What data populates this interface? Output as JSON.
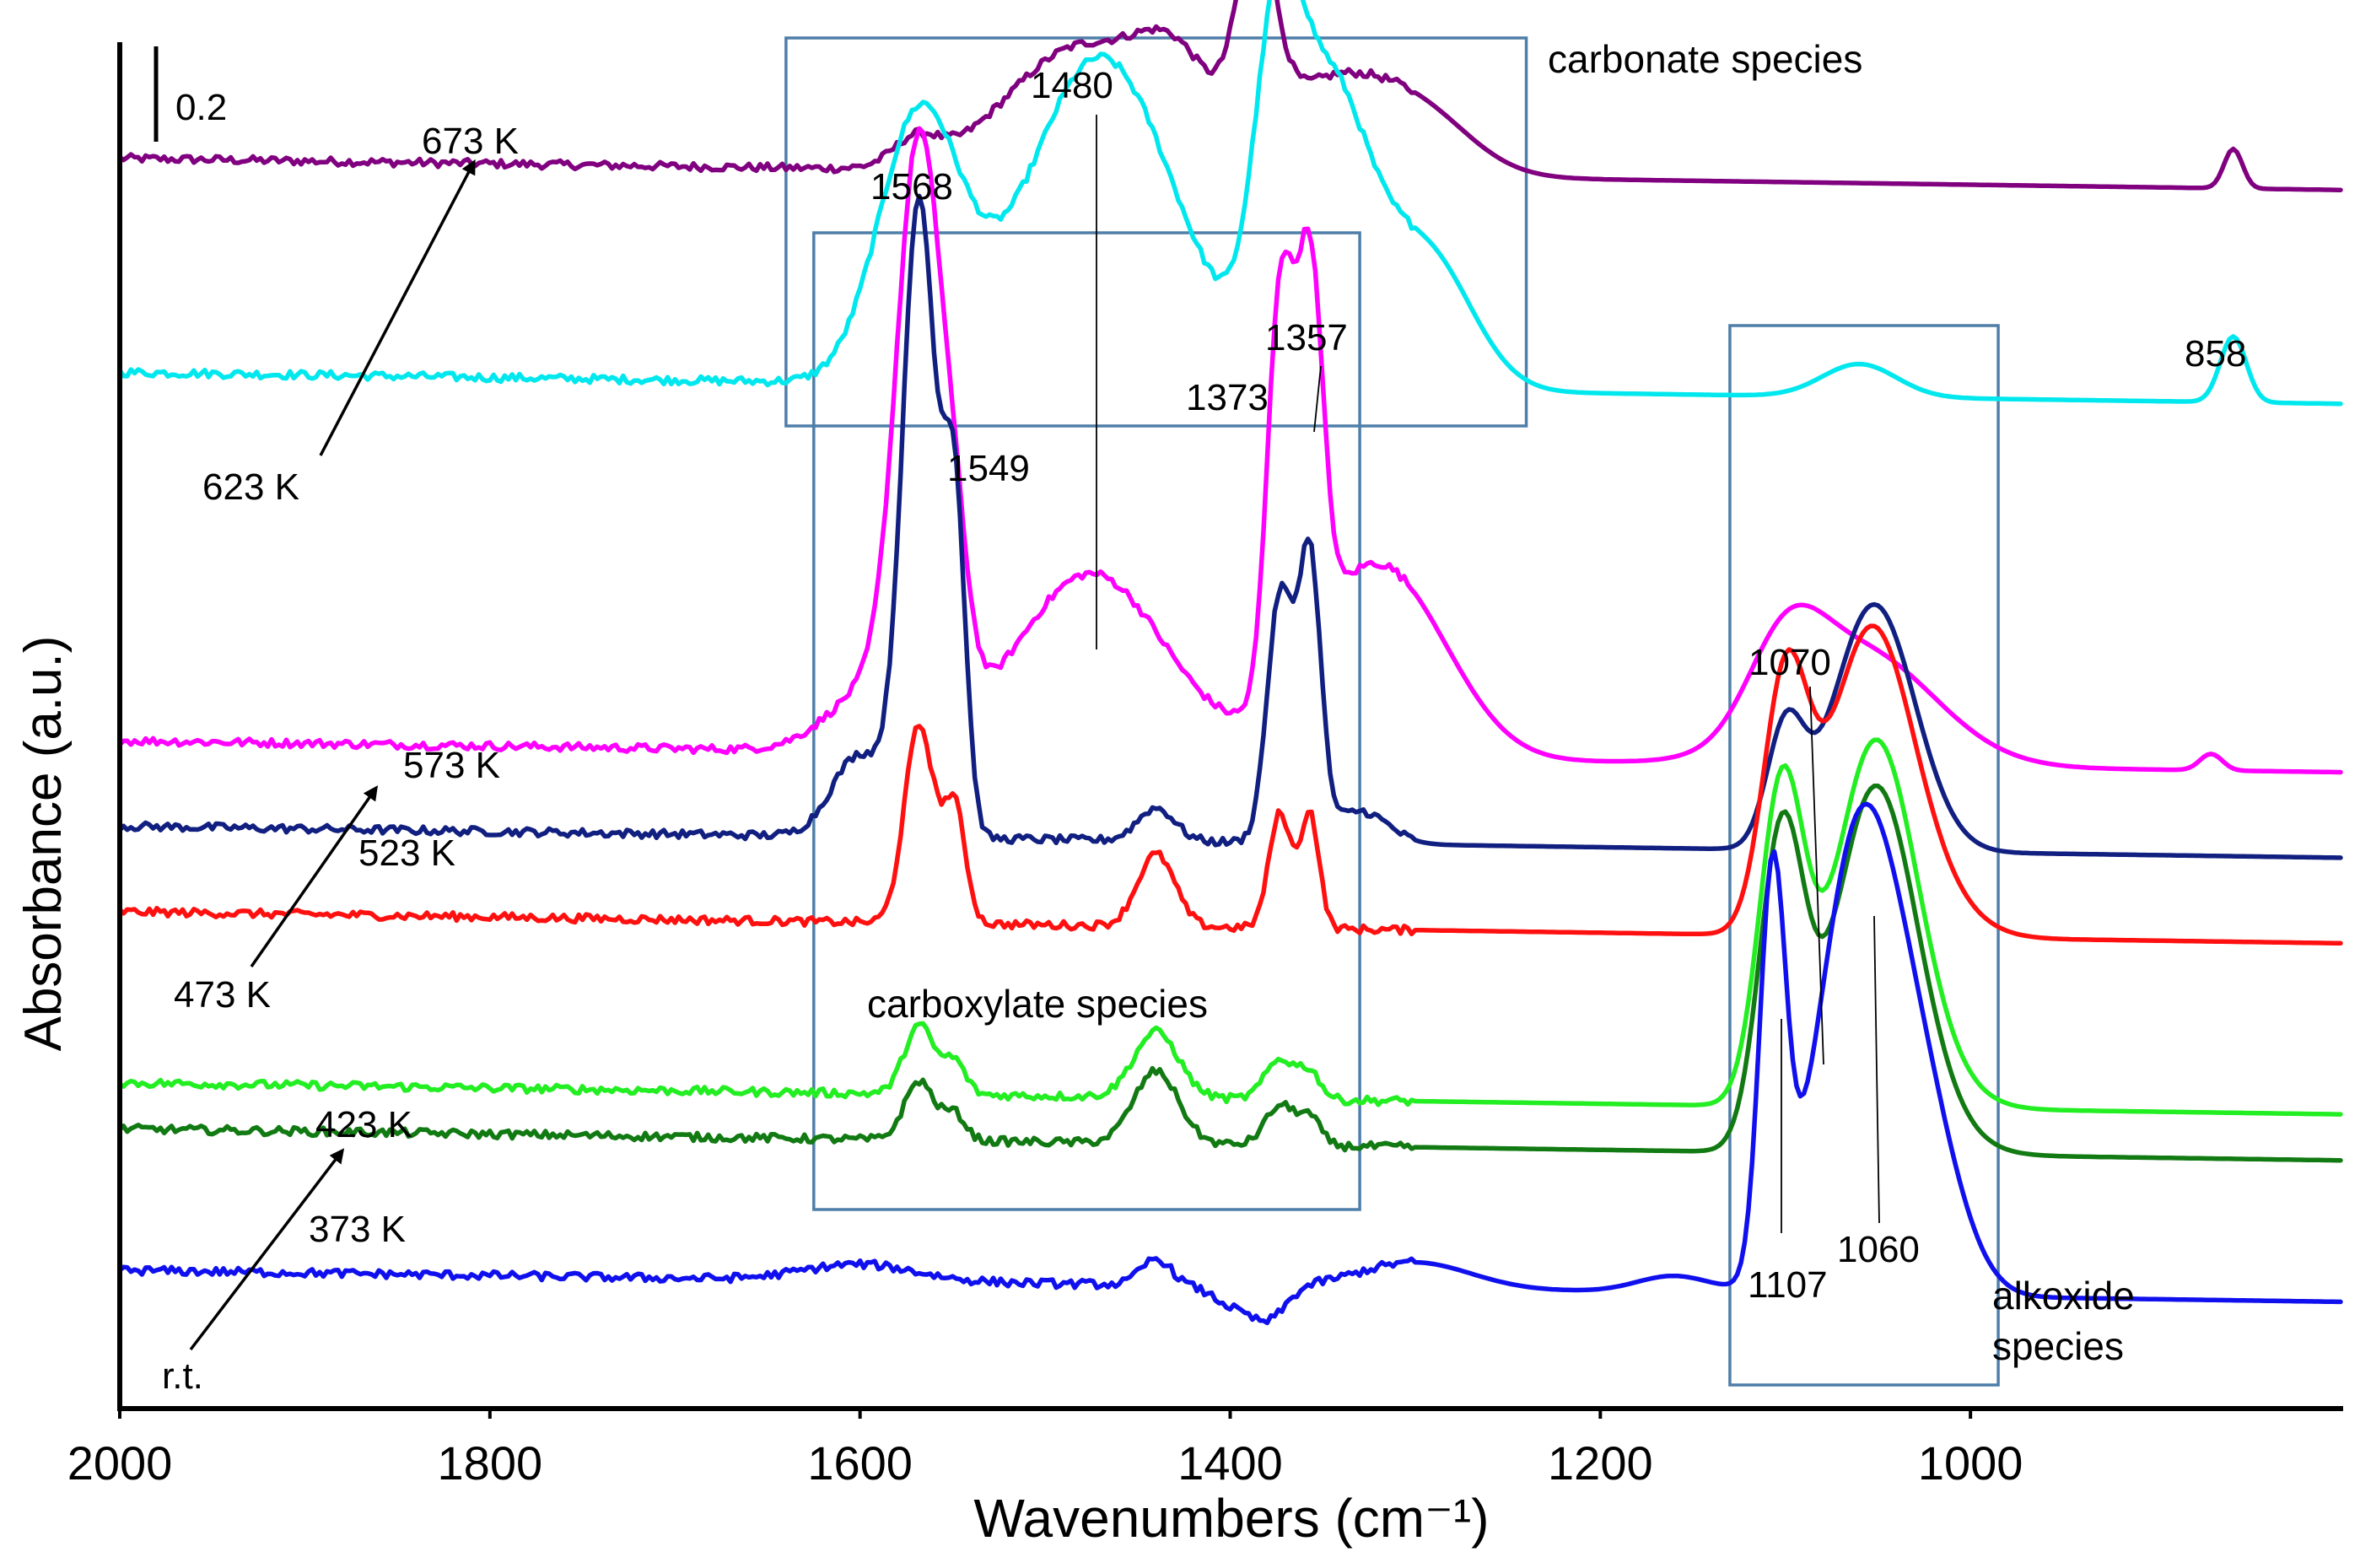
{
  "chart_data": {
    "type": "line",
    "xlabel": "Wavenumbers (cm⁻¹)",
    "ylabel": "Absorbance (a.u.)",
    "xlim": [
      2000,
      800
    ],
    "x_reversed": true,
    "x_ticks": [
      2000,
      1800,
      1600,
      1400,
      1200,
      1000
    ],
    "x_tick_labels": [
      "2000",
      "1800",
      "1600",
      "1400",
      "1200",
      "1000"
    ],
    "grid": false,
    "legend": "none",
    "scale_bar": {
      "label": "0.2",
      "value": 0.2
    },
    "regions": [
      {
        "name": "carbonate",
        "label": "carbonate species",
        "x_range": [
          1640,
          1240
        ]
      },
      {
        "name": "carboxylate",
        "label": "carboxylate species",
        "x_range": [
          1625,
          1330
        ]
      },
      {
        "name": "alkoxide",
        "label_lines": [
          "alkoxide",
          "species"
        ],
        "x_range": [
          1130,
          985
        ]
      }
    ],
    "peak_labels": [
      {
        "text": "1480",
        "x": 1480
      },
      {
        "text": "1568",
        "x": 1568
      },
      {
        "text": "1549",
        "x": 1549
      },
      {
        "text": "1373",
        "x": 1373
      },
      {
        "text": "1357",
        "x": 1357
      },
      {
        "text": "1070",
        "x": 1070
      },
      {
        "text": "1107",
        "x": 1107
      },
      {
        "text": "1060",
        "x": 1060
      },
      {
        "text": "858",
        "x": 858
      }
    ],
    "series": [
      {
        "name": "673 K",
        "color": "#800080",
        "baseline": 3.65,
        "peaks": [
          [
            1570,
            0.08,
            12
          ],
          [
            1480,
            0.38,
            40
          ],
          [
            1430,
            0.22,
            20
          ],
          [
            1386,
            0.58,
            10
          ],
          [
            1340,
            0.3,
            40
          ],
          [
            1290,
            0.08,
            25
          ],
          [
            858,
            0.12,
            5
          ]
        ]
      },
      {
        "name": "623 K",
        "color": "#00e8ee",
        "baseline": 3.0,
        "peaks": [
          [
            1568,
            0.8,
            22
          ],
          [
            1470,
            1.0,
            40
          ],
          [
            1375,
            0.8,
            12
          ],
          [
            1348,
            0.9,
            22
          ],
          [
            1295,
            0.42,
            25
          ],
          [
            1060,
            0.1,
            20
          ],
          [
            858,
            0.2,
            7
          ]
        ]
      },
      {
        "name": "573 K",
        "color": "#ff00ff",
        "baseline": 1.88,
        "peaks": [
          [
            1590,
            0.2,
            25
          ],
          [
            1568,
            1.7,
            12
          ],
          [
            1549,
            0.35,
            8
          ],
          [
            1475,
            0.55,
            40
          ],
          [
            1373,
            1.2,
            7
          ],
          [
            1357,
            1.15,
            7
          ],
          [
            1335,
            0.4,
            30
          ],
          [
            1300,
            0.3,
            30
          ],
          [
            1100,
            0.25,
            20
          ],
          [
            1060,
            0.35,
            40
          ],
          [
            870,
            0.05,
            6
          ]
        ]
      },
      {
        "name": "523 K",
        "color": "#101f80",
        "baseline": 1.62,
        "peaks": [
          [
            1600,
            0.25,
            15
          ],
          [
            1568,
            1.92,
            9
          ],
          [
            1549,
            1.0,
            6
          ],
          [
            1440,
            0.1,
            10
          ],
          [
            1373,
            0.75,
            7
          ],
          [
            1357,
            0.85,
            6
          ],
          [
            1330,
            0.1,
            15
          ],
          [
            1100,
            0.35,
            10
          ],
          [
            1052,
            0.75,
            22
          ]
        ]
      },
      {
        "name": "473 K",
        "color": "#ff1010",
        "baseline": 1.36,
        "peaks": [
          [
            1568,
            0.6,
            8
          ],
          [
            1549,
            0.35,
            6
          ],
          [
            1440,
            0.22,
            10
          ],
          [
            1373,
            0.35,
            6
          ],
          [
            1357,
            0.35,
            5
          ],
          [
            1100,
            0.75,
            12
          ],
          [
            1055,
            0.85,
            22
          ],
          [
            1030,
            0.15,
            25
          ]
        ]
      },
      {
        "name": "423 K",
        "color": "#22ee22",
        "baseline": 0.84,
        "peaks": [
          [
            1568,
            0.21,
            8
          ],
          [
            1549,
            0.1,
            6
          ],
          [
            1440,
            0.2,
            12
          ],
          [
            1373,
            0.12,
            8
          ],
          [
            1357,
            0.08,
            6
          ],
          [
            1102,
            0.95,
            12
          ],
          [
            1052,
            1.05,
            22
          ],
          [
            1030,
            0.1,
            25
          ]
        ]
      },
      {
        "name": "373 K",
        "color": "#127a12",
        "baseline": 0.7,
        "peaks": [
          [
            1568,
            0.18,
            8
          ],
          [
            1549,
            0.08,
            6
          ],
          [
            1440,
            0.22,
            12
          ],
          [
            1373,
            0.12,
            8
          ],
          [
            1357,
            0.08,
            6
          ],
          [
            1102,
            0.95,
            12
          ],
          [
            1052,
            1.05,
            22
          ],
          [
            1030,
            0.1,
            25
          ]
        ]
      },
      {
        "name": "r.t.",
        "color": "#1010ee",
        "baseline": 0.27,
        "peaks": [
          [
            1600,
            0.05,
            30
          ],
          [
            1440,
            0.08,
            8
          ],
          [
            1400,
            -0.05,
            10
          ],
          [
            1380,
            -0.1,
            10
          ],
          [
            1300,
            0.08,
            30
          ],
          [
            1160,
            0.05,
            20
          ],
          [
            1107,
            1.2,
            7
          ],
          [
            1060,
            1.38,
            22
          ],
          [
            1025,
            0.45,
            20
          ]
        ]
      }
    ],
    "temperature_labels": {
      "t673": "673 K",
      "t623": "623 K",
      "t573": "573 K",
      "t523": "523 K",
      "t473": "473 K",
      "t423": "423 K",
      "t373": "373 K",
      "trt": "r.t."
    }
  }
}
